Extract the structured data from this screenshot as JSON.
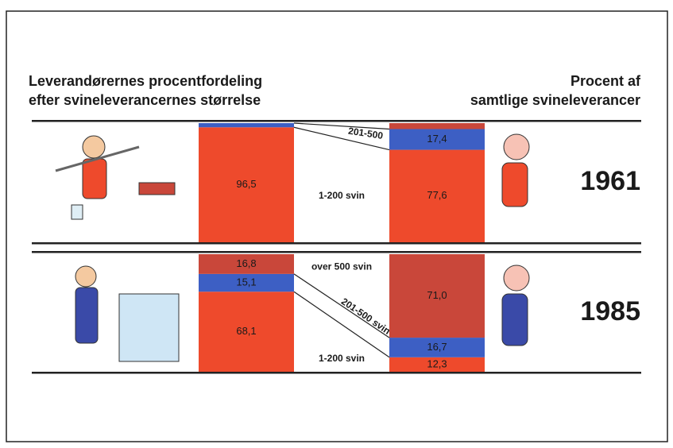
{
  "chart_data": {
    "type": "stacked-bar",
    "title_left": [
      "Leverandørernes procentfordeling",
      "efter svineleverancernes størrelse"
    ],
    "title_right": [
      "Procent af",
      "samtlige svineleverancer"
    ],
    "ylim": [
      0,
      100
    ],
    "panels": [
      {
        "label": "1961",
        "segments": [
          {
            "name": "1-200 svin",
            "color": "#ee4a2c",
            "left": 96.5,
            "left_label": "96,5",
            "right": 77.6,
            "right_label": "77,6"
          },
          {
            "name": "201-500",
            "color": "#3d5fc4",
            "left": 3.5,
            "left_label": null,
            "right": 17.4,
            "right_label": "17,4"
          },
          {
            "name": null,
            "color": "#c9473a",
            "left": 0,
            "left_label": null,
            "right": 5.0,
            "right_label": null
          }
        ]
      },
      {
        "label": "1985",
        "segments": [
          {
            "name": "1-200 svin",
            "color": "#ee4a2c",
            "left": 68.1,
            "left_label": "68,1",
            "right": 12.3,
            "right_label": "12,3"
          },
          {
            "name": "201-500 svin",
            "color": "#3d5fc4",
            "left": 15.1,
            "left_label": "15,1",
            "right": 16.7,
            "right_label": "16,7"
          },
          {
            "name": "over 500 svin",
            "color": "#c9473a",
            "left": 16.8,
            "left_label": "16,8",
            "right": 71.0,
            "right_label": "71,0"
          }
        ]
      }
    ]
  }
}
